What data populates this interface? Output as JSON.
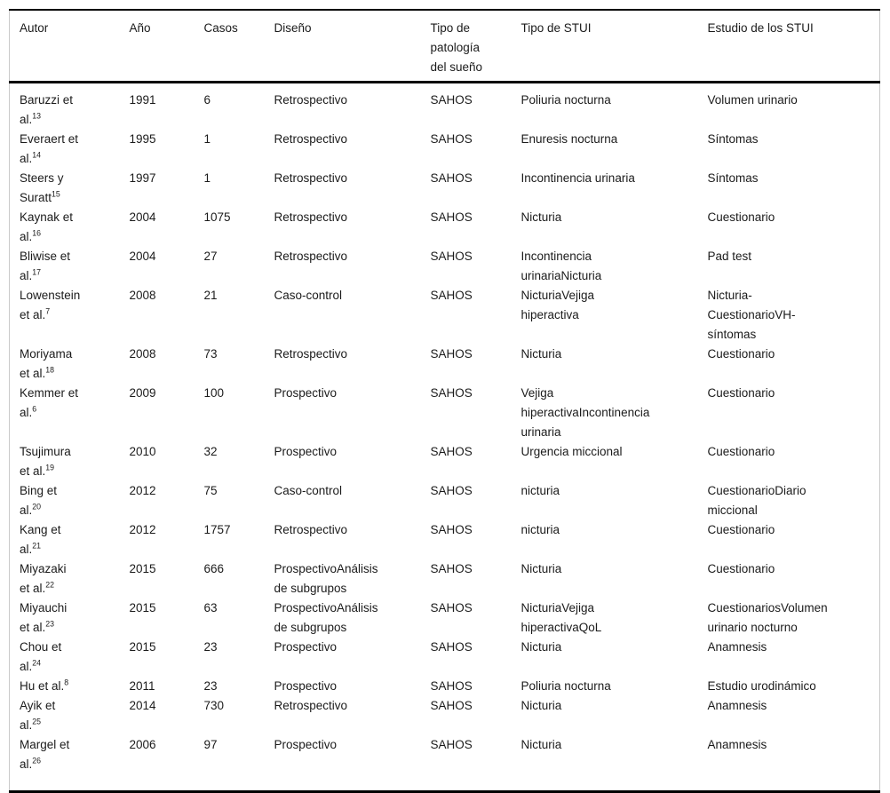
{
  "table": {
    "columns": [
      {
        "key": "autor",
        "label": "Autor"
      },
      {
        "key": "ano",
        "label": "Año"
      },
      {
        "key": "casos",
        "label": "Casos"
      },
      {
        "key": "diseno",
        "label": "Diseño"
      },
      {
        "key": "patologia",
        "label": "Tipo de patología del sueño"
      },
      {
        "key": "stui",
        "label": "Tipo de STUI"
      },
      {
        "key": "estudio",
        "label": "Estudio de los STUI"
      }
    ],
    "rows": [
      {
        "autor": "Baruzzi et al.",
        "ref": "13",
        "ano": "1991",
        "casos": "6",
        "diseno": "Retrospectivo",
        "patologia": "SAHOS",
        "stui": "Poliuria nocturna",
        "estudio": "Volumen urinario"
      },
      {
        "autor": "Everaert et al.",
        "ref": "14",
        "ano": "1995",
        "casos": "1",
        "diseno": "Retrospectivo",
        "patologia": "SAHOS",
        "stui": "Enuresis nocturna",
        "estudio": "Síntomas"
      },
      {
        "autor": "Steers y Suratt",
        "ref": "15",
        "ano": "1997",
        "casos": "1",
        "diseno": "Retrospectivo",
        "patologia": "SAHOS",
        "stui": "Incontinencia urinaria",
        "estudio": "Síntomas"
      },
      {
        "autor": "Kaynak et al.",
        "ref": "16",
        "ano": "2004",
        "casos": "1075",
        "diseno": "Retrospectivo",
        "patologia": "SAHOS",
        "stui": "Nicturia",
        "estudio": "Cuestionario"
      },
      {
        "autor": "Bliwise et al.",
        "ref": "17",
        "ano": "2004",
        "casos": "27",
        "diseno": "Retrospectivo",
        "patologia": "SAHOS",
        "stui": "Incontinencia urinariaNicturia",
        "estudio": "Pad test"
      },
      {
        "autor": "Lowenstein et al.",
        "ref": "7",
        "ano": "2008",
        "casos": "21",
        "diseno": "Caso-control",
        "patologia": "SAHOS",
        "stui": "NicturiaVejiga hiperactiva",
        "estudio": "Nicturia-CuestionarioVH-síntomas"
      },
      {
        "autor": "Moriyama et al.",
        "ref": "18",
        "ano": "2008",
        "casos": "73",
        "diseno": "Retrospectivo",
        "patologia": "SAHOS",
        "stui": "Nicturia",
        "estudio": "Cuestionario"
      },
      {
        "autor": "Kemmer et al.",
        "ref": "6",
        "ano": "2009",
        "casos": "100",
        "diseno": "Prospectivo",
        "patologia": "SAHOS",
        "stui": "Vejiga hiperactivaIncontinencia urinaria",
        "estudio": "Cuestionario"
      },
      {
        "autor": "Tsujimura et al.",
        "ref": "19",
        "ano": "2010",
        "casos": "32",
        "diseno": "Prospectivo",
        "patologia": "SAHOS",
        "stui": "Urgencia miccional",
        "estudio": "Cuestionario"
      },
      {
        "autor": "Bing et al.",
        "ref": "20",
        "ano": "2012",
        "casos": "75",
        "diseno": "Caso-control",
        "patologia": "SAHOS",
        "stui": "nicturia",
        "estudio": "CuestionarioDiario miccional"
      },
      {
        "autor": "Kang et al.",
        "ref": "21",
        "ano": "2012",
        "casos": "1757",
        "diseno": "Retrospectivo",
        "patologia": "SAHOS",
        "stui": "nicturia",
        "estudio": "Cuestionario"
      },
      {
        "autor": "Miyazaki et al.",
        "ref": "22",
        "ano": "2015",
        "casos": "666",
        "diseno": "ProspectivoAnálisis de subgrupos",
        "patologia": "SAHOS",
        "stui": "Nicturia",
        "estudio": "Cuestionario"
      },
      {
        "autor": "Miyauchi et al.",
        "ref": "23",
        "ano": "2015",
        "casos": "63",
        "diseno": "ProspectivoAnálisis de subgrupos",
        "patologia": "SAHOS",
        "stui": "NicturiaVejiga hiperactivaQoL",
        "estudio": "CuestionariosVolumen urinario nocturno"
      },
      {
        "autor": "Chou et al.",
        "ref": "24",
        "ano": "2015",
        "casos": "23",
        "diseno": "Prospectivo",
        "patologia": "SAHOS",
        "stui": "Nicturia",
        "estudio": "Anamnesis"
      },
      {
        "autor": "Hu et al.",
        "ref": "8",
        "ano": "2011",
        "casos": "23",
        "diseno": "Prospectivo",
        "patologia": "SAHOS",
        "stui": "Poliuria nocturna",
        "estudio": "Estudio urodinámico"
      },
      {
        "autor": "Ayik et al.",
        "ref": "25",
        "ano": "2014",
        "casos": "730",
        "diseno": "Retrospectivo",
        "patologia": "SAHOS",
        "stui": "Nicturia",
        "estudio": "Anamnesis"
      },
      {
        "autor": "Margel et al.",
        "ref": "26",
        "ano": "2006",
        "casos": "97",
        "diseno": "Prospectivo",
        "patologia": "SAHOS",
        "stui": "Nicturia",
        "estudio": "Anamnesis"
      }
    ]
  }
}
